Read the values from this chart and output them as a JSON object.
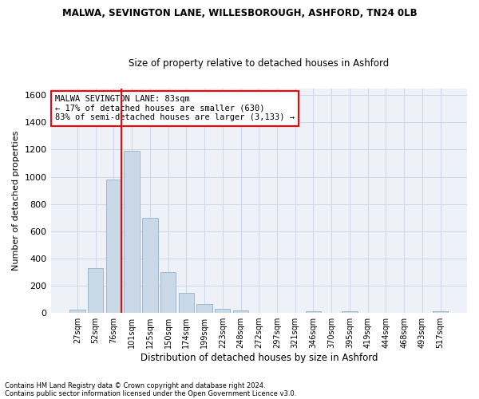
{
  "title1": "MALWA, SEVINGTON LANE, WILLESBOROUGH, ASHFORD, TN24 0LB",
  "title2": "Size of property relative to detached houses in Ashford",
  "xlabel": "Distribution of detached houses by size in Ashford",
  "ylabel": "Number of detached properties",
  "categories": [
    "27sqm",
    "52sqm",
    "76sqm",
    "101sqm",
    "125sqm",
    "150sqm",
    "174sqm",
    "199sqm",
    "223sqm",
    "248sqm",
    "272sqm",
    "297sqm",
    "321sqm",
    "346sqm",
    "370sqm",
    "395sqm",
    "419sqm",
    "444sqm",
    "468sqm",
    "493sqm",
    "517sqm"
  ],
  "values": [
    25,
    330,
    980,
    1190,
    700,
    300,
    150,
    65,
    30,
    20,
    0,
    0,
    0,
    10,
    0,
    10,
    0,
    0,
    0,
    0,
    10
  ],
  "bar_color": "#c9d9e8",
  "bar_edge_color": "#a0b8cc",
  "annotation_text": "MALWA SEVINGTON LANE: 83sqm\n← 17% of detached houses are smaller (630)\n83% of semi-detached houses are larger (3,133) →",
  "annotation_box_color": "white",
  "annotation_box_edge": "red",
  "footer1": "Contains HM Land Registry data © Crown copyright and database right 2024.",
  "footer2": "Contains public sector information licensed under the Open Government Licence v3.0.",
  "ylim": [
    0,
    1650
  ],
  "yticks": [
    0,
    200,
    400,
    600,
    800,
    1000,
    1200,
    1400,
    1600
  ],
  "grid_color": "#d0d8e8",
  "bg_color": "#eef2f8",
  "red_line_x": 2.43
}
